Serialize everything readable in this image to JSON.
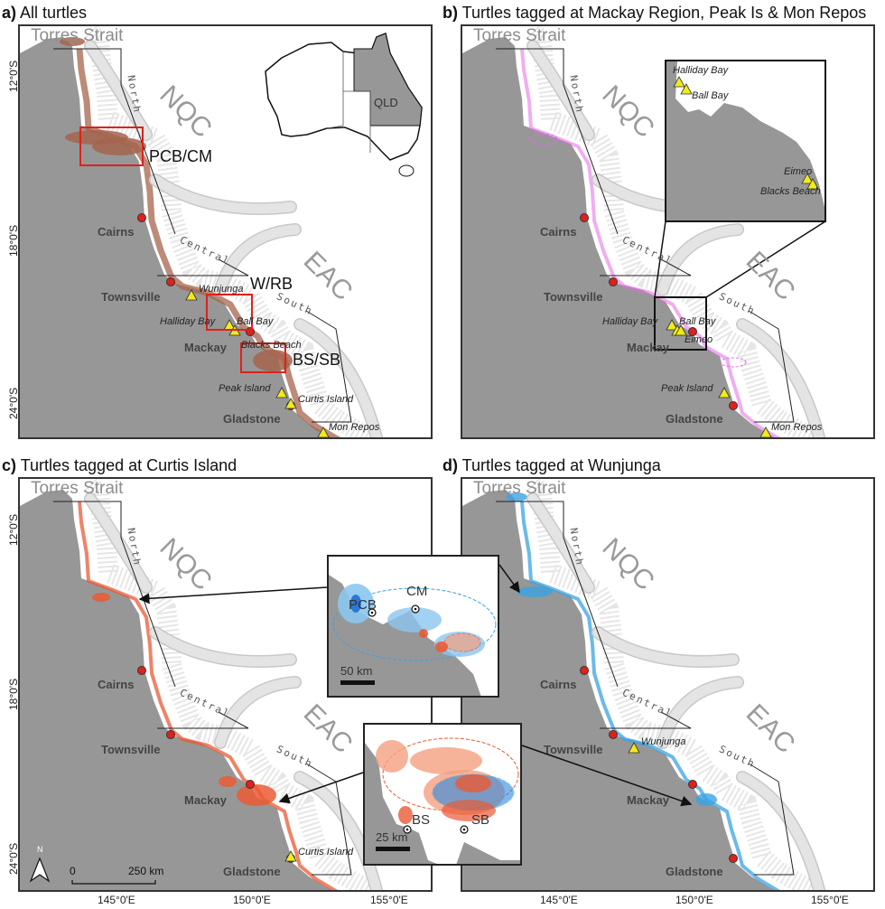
{
  "colors": {
    "land": "#979797",
    "track_a": "#a5644c",
    "track_b": "#e36be3",
    "track_c": "#ea5a34",
    "track_d": "#3aa3e3",
    "city_dot": "#e0201c",
    "site_triangle": "#f2ea1a",
    "region_box": "#e0201c",
    "current_arrow": "#e4e4e4"
  },
  "map_labels": {
    "torres": "Torres Strait",
    "nqc": "NQC",
    "eac": "EAC",
    "north": "North",
    "central": "Central",
    "south": "South"
  },
  "panels": [
    {
      "title_letter": "a)",
      "title": "All turtles",
      "track": "track_a",
      "cities": [
        "Cairns",
        "Townsville",
        "Mackay",
        "Gladstone"
      ],
      "sites": [
        "Wunjunga",
        "Halliday Bay",
        "Ball Bay",
        "Blacks Beach",
        "Peak Island",
        "Curtis Island",
        "Mon Repos"
      ],
      "regions": [
        "PCB/CM",
        "W/RB",
        "BS/SB"
      ],
      "inset_state": "QLD"
    },
    {
      "title_letter": "b)",
      "title": "Turtles tagged at Mackay Region, Peak Is & Mon Repos",
      "track": "track_b",
      "cities": [
        "Cairns",
        "Townsville",
        "Mackay",
        "Gladstone"
      ],
      "sites": [
        "Halliday Bay",
        "Ball Bay",
        "Eimeo",
        "Peak Island",
        "Mon Repos"
      ],
      "zoom_inset_sites": [
        "Halliday Bay",
        "Ball Bay",
        "Eimeo",
        "Blacks Beach"
      ]
    },
    {
      "title_letter": "c)",
      "title": "Turtles tagged at Curtis Island",
      "track": "track_c",
      "cities": [
        "Cairns",
        "Townsville",
        "Mackay",
        "Gladstone"
      ],
      "sites": [
        "Curtis Island"
      ],
      "north_arrow": "N",
      "scale": [
        "0",
        "250 km"
      ]
    },
    {
      "title_letter": "d)",
      "title": "Turtles tagged at Wunjunga",
      "track": "track_d",
      "cities": [
        "Cairns",
        "Townsville",
        "Mackay",
        "Gladstone"
      ],
      "sites": [
        "Wunjunga"
      ]
    }
  ],
  "lat_ticks": [
    "12°0'S",
    "18°0'S",
    "24°0'S"
  ],
  "lon_ticks": [
    "145°0'E",
    "150°0'E",
    "155°0'E"
  ],
  "insets": {
    "north": {
      "sites": [
        "PCB",
        "CM"
      ],
      "scale": "50 km"
    },
    "south": {
      "sites": [
        "BS",
        "SB"
      ],
      "scale": "25 km"
    }
  }
}
